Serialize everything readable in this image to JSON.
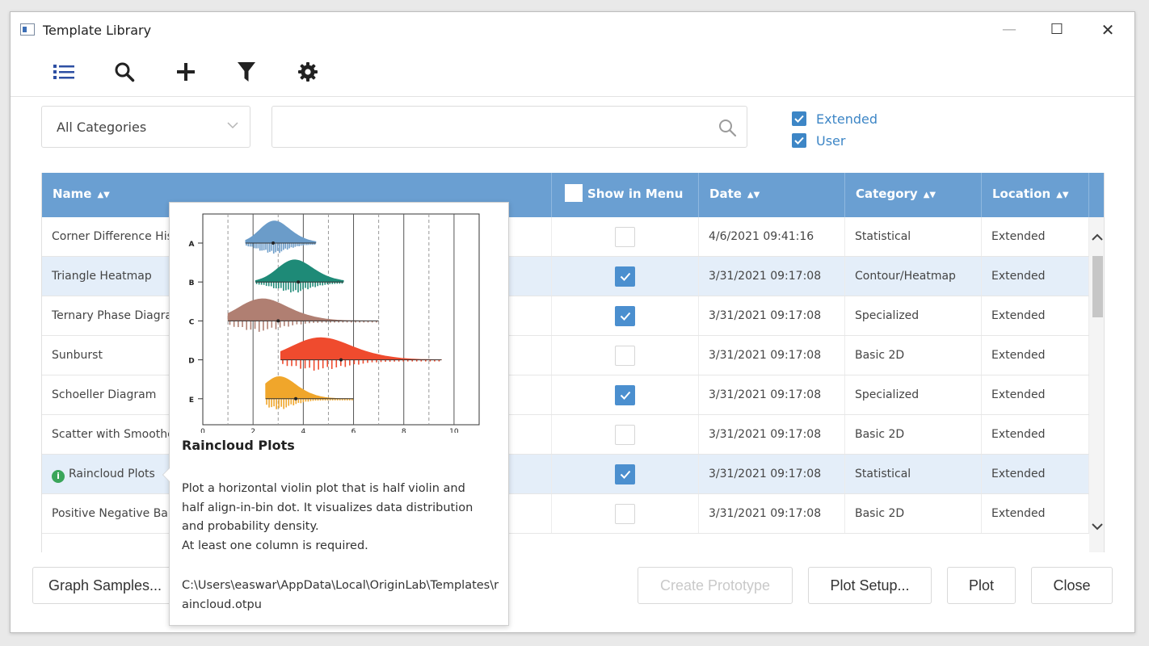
{
  "window": {
    "title": "Template Library",
    "minimize": "—",
    "maximize": "☐",
    "close": "✕"
  },
  "toolbar": {
    "icons": [
      "list-icon",
      "search-icon",
      "plus-icon",
      "filter-icon",
      "gear-icon"
    ]
  },
  "filters": {
    "category": "All Categories",
    "search_value": "",
    "checkboxes": [
      {
        "label": "Extended",
        "checked": true
      },
      {
        "label": "User",
        "checked": true
      }
    ]
  },
  "grid": {
    "columns": {
      "name": "Name",
      "show_in_menu": "Show in Menu",
      "date": "Date",
      "category": "Category",
      "location": "Location"
    },
    "rows": [
      {
        "name": "Corner Difference Histogram",
        "in_menu": false,
        "date": "4/6/2021 09:41:16",
        "category": "Statistical",
        "location": "Extended"
      },
      {
        "name": "Triangle Heatmap",
        "in_menu": true,
        "date": "3/31/2021 09:17:08",
        "category": "Contour/Heatmap",
        "location": "Extended"
      },
      {
        "name": "Ternary Phase Diagram",
        "in_menu": true,
        "date": "3/31/2021 09:17:08",
        "category": "Specialized",
        "location": "Extended"
      },
      {
        "name": "Sunburst",
        "in_menu": false,
        "date": "3/31/2021 09:17:08",
        "category": "Basic 2D",
        "location": "Extended"
      },
      {
        "name": "Schoeller Diagram",
        "in_menu": true,
        "date": "3/31/2021 09:17:08",
        "category": "Specialized",
        "location": "Extended"
      },
      {
        "name": "Scatter with Smoothed Line",
        "in_menu": false,
        "date": "3/31/2021 09:17:08",
        "category": "Basic 2D",
        "location": "Extended"
      },
      {
        "name": "Raincloud Plots",
        "in_menu": true,
        "date": "3/31/2021 09:17:08",
        "category": "Statistical",
        "location": "Extended"
      },
      {
        "name": "Positive Negative Bar",
        "in_menu": false,
        "date": "3/31/2021 09:17:08",
        "category": "Basic 2D",
        "location": "Extended"
      }
    ]
  },
  "buttons": {
    "graph_samples": "Graph Samples...",
    "create_prototype": "Create Prototype",
    "plot_setup": "Plot Setup...",
    "plot": "Plot",
    "close": "Close"
  },
  "tooltip": {
    "title": "Raincloud Plots",
    "description_lines": [
      "Plot a horizontal violin plot that is half violin and",
      "half align-in-bin dot. It visualizes data distribution",
      "and probability density.",
      "At least one column is required."
    ],
    "path": "C:\\Users\\easwar\\AppData\\Local\\OriginLab\\Templates\\raincloud.otpu",
    "preview_chart": {
      "type": "raincloud",
      "categories": [
        "A",
        "B",
        "C",
        "D",
        "E"
      ],
      "x_ticks": [
        "0",
        "2",
        "4",
        "6",
        "8",
        "10"
      ],
      "xlim": [
        0,
        11
      ],
      "series": [
        {
          "name": "A",
          "color": "#6b9cc9",
          "center": 2.8,
          "spread": 0.55,
          "min": 1.7,
          "max": 4.5,
          "mean": 2.8
        },
        {
          "name": "B",
          "color": "#1e8a77",
          "center": 3.6,
          "spread": 0.65,
          "min": 2.1,
          "max": 5.6,
          "mean": 3.8
        },
        {
          "name": "C",
          "color": "#b07f72",
          "center": 2.3,
          "spread": 0.9,
          "min": 1.0,
          "max": 7.0,
          "mean": 3.0
        },
        {
          "name": "D",
          "color": "#ef4b2e",
          "center": 4.6,
          "spread": 1.1,
          "min": 3.1,
          "max": 9.5,
          "mean": 5.5
        },
        {
          "name": "E",
          "color": "#f0a62b",
          "center": 3.0,
          "spread": 0.6,
          "min": 2.5,
          "max": 6.0,
          "mean": 3.7
        }
      ]
    }
  }
}
